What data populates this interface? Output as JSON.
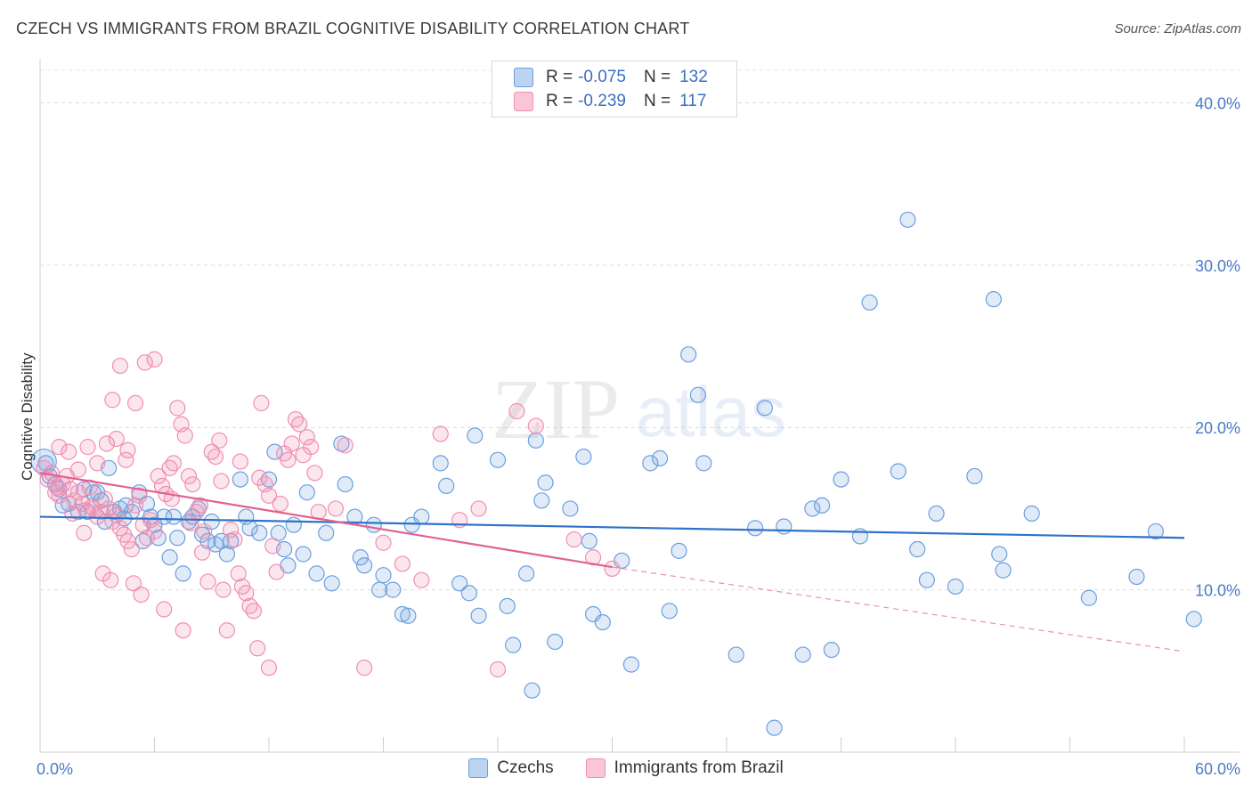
{
  "header": {
    "title": "CZECH VS IMMIGRANTS FROM BRAZIL COGNITIVE DISABILITY CORRELATION CHART",
    "source": "Source: ZipAtlas.com"
  },
  "legend": {
    "czechs": {
      "r_label": "R =",
      "r_value": "-0.075",
      "n_label": "N =",
      "n_value": "132"
    },
    "brazil": {
      "r_label": "R =",
      "r_value": "-0.239",
      "n_label": "N =",
      "n_value": "117"
    }
  },
  "watermark": {
    "zip": "ZIP",
    "atlas": "atlas"
  },
  "colors": {
    "czechs": "#6a9fdf",
    "brazil": "#f08fb0",
    "czechs_line": "#2f72c9",
    "brazil_line": "#e2618f",
    "tick_label": "#4a7cc7"
  },
  "chart_data": {
    "type": "scatter",
    "ylabel": "Cognitive Disability",
    "xlim": [
      0,
      60
    ],
    "ylim": [
      0,
      42
    ],
    "x_tick_labels": [
      {
        "x": 0,
        "label": "0.0%"
      },
      {
        "x": 60,
        "label": "60.0%"
      }
    ],
    "y_tick_labels": [
      {
        "y": 10,
        "label": "10.0%"
      },
      {
        "y": 20,
        "label": "20.0%"
      },
      {
        "y": 30,
        "label": "30.0%"
      },
      {
        "y": 40,
        "label": "40.0%"
      }
    ],
    "x_minor_ticks": [
      6,
      12,
      18,
      24,
      30,
      36,
      42,
      48,
      54,
      60
    ],
    "series": [
      {
        "name": "Czechs",
        "trend": {
          "x0": 0,
          "y0": 14.5,
          "x1": 60,
          "y1": 13.2
        },
        "points": [
          [
            0.3,
            17.8
          ],
          [
            0.5,
            17.0
          ],
          [
            0.8,
            16.5
          ],
          [
            1.0,
            16.2
          ],
          [
            1.2,
            15.2
          ],
          [
            1.5,
            15.3
          ],
          [
            2.0,
            14.8
          ],
          [
            2.3,
            16.2
          ],
          [
            2.5,
            14.8
          ],
          [
            2.8,
            16.0
          ],
          [
            3.0,
            16.0
          ],
          [
            3.2,
            15.5
          ],
          [
            3.4,
            14.2
          ],
          [
            3.6,
            17.5
          ],
          [
            3.9,
            14.8
          ],
          [
            4.2,
            15.0
          ],
          [
            4.4,
            14.4
          ],
          [
            4.5,
            15.2
          ],
          [
            4.8,
            14.8
          ],
          [
            5.2,
            16.0
          ],
          [
            5.4,
            13.0
          ],
          [
            5.6,
            15.3
          ],
          [
            5.8,
            14.5
          ],
          [
            6.0,
            14.0
          ],
          [
            6.2,
            13.2
          ],
          [
            6.5,
            14.5
          ],
          [
            6.8,
            12.0
          ],
          [
            7.0,
            14.5
          ],
          [
            7.2,
            13.2
          ],
          [
            7.5,
            11.0
          ],
          [
            7.8,
            14.2
          ],
          [
            8.0,
            14.5
          ],
          [
            8.3,
            15.0
          ],
          [
            8.5,
            13.4
          ],
          [
            8.8,
            13.0
          ],
          [
            9.0,
            14.2
          ],
          [
            9.2,
            12.8
          ],
          [
            9.5,
            13.0
          ],
          [
            9.8,
            12.2
          ],
          [
            10.0,
            13.0
          ],
          [
            10.5,
            16.8
          ],
          [
            10.8,
            14.5
          ],
          [
            11.0,
            13.8
          ],
          [
            11.5,
            13.5
          ],
          [
            12.0,
            16.8
          ],
          [
            12.3,
            18.5
          ],
          [
            12.5,
            13.5
          ],
          [
            12.8,
            12.5
          ],
          [
            13.0,
            11.5
          ],
          [
            13.3,
            14.0
          ],
          [
            13.8,
            12.2
          ],
          [
            14.0,
            16.0
          ],
          [
            14.5,
            11.0
          ],
          [
            15.0,
            13.5
          ],
          [
            15.3,
            10.4
          ],
          [
            15.8,
            19.0
          ],
          [
            16.0,
            16.5
          ],
          [
            16.5,
            14.5
          ],
          [
            16.8,
            12.0
          ],
          [
            17.0,
            11.5
          ],
          [
            17.5,
            14.0
          ],
          [
            17.8,
            10.0
          ],
          [
            18.0,
            10.9
          ],
          [
            18.5,
            10.0
          ],
          [
            19.0,
            8.5
          ],
          [
            19.3,
            8.4
          ],
          [
            19.5,
            14.0
          ],
          [
            20.0,
            14.5
          ],
          [
            21.0,
            17.8
          ],
          [
            21.3,
            16.4
          ],
          [
            22.0,
            10.4
          ],
          [
            22.5,
            9.8
          ],
          [
            22.8,
            19.5
          ],
          [
            23.0,
            8.4
          ],
          [
            24.0,
            18.0
          ],
          [
            24.5,
            9.0
          ],
          [
            24.8,
            6.6
          ],
          [
            25.5,
            11.0
          ],
          [
            25.8,
            3.8
          ],
          [
            26.0,
            19.2
          ],
          [
            26.3,
            15.5
          ],
          [
            26.5,
            16.6
          ],
          [
            27.0,
            6.8
          ],
          [
            27.8,
            15.0
          ],
          [
            28.5,
            18.2
          ],
          [
            28.8,
            13.0
          ],
          [
            29.0,
            8.5
          ],
          [
            29.5,
            8.0
          ],
          [
            30.5,
            11.8
          ],
          [
            31.0,
            5.4
          ],
          [
            32.0,
            17.8
          ],
          [
            32.5,
            18.1
          ],
          [
            33.0,
            8.7
          ],
          [
            33.5,
            12.4
          ],
          [
            34.0,
            24.5
          ],
          [
            34.5,
            22.0
          ],
          [
            34.8,
            17.8
          ],
          [
            36.5,
            6.0
          ],
          [
            37.5,
            13.8
          ],
          [
            38.0,
            21.2
          ],
          [
            38.5,
            1.5
          ],
          [
            39.0,
            13.9
          ],
          [
            40.0,
            6.0
          ],
          [
            40.5,
            15.0
          ],
          [
            41.0,
            15.2
          ],
          [
            41.5,
            6.3
          ],
          [
            42.0,
            16.8
          ],
          [
            43.0,
            13.3
          ],
          [
            43.5,
            27.7
          ],
          [
            45.0,
            17.3
          ],
          [
            45.5,
            32.8
          ],
          [
            46.0,
            12.5
          ],
          [
            46.5,
            10.6
          ],
          [
            47.0,
            14.7
          ],
          [
            48.0,
            10.2
          ],
          [
            49.0,
            17.0
          ],
          [
            50.0,
            27.9
          ],
          [
            50.3,
            12.2
          ],
          [
            50.5,
            11.2
          ],
          [
            52.0,
            14.7
          ],
          [
            55.0,
            9.5
          ],
          [
            57.5,
            10.8
          ],
          [
            58.5,
            13.6
          ],
          [
            60.5,
            8.2
          ]
        ]
      },
      {
        "name": "Immigrants from Brazil",
        "trend": {
          "x0": 0,
          "y0": 17.2,
          "x1": 30,
          "y1": 11.4,
          "dash_x1": 60,
          "dash_y1": 6.2
        },
        "points": [
          [
            0.2,
            17.5
          ],
          [
            0.4,
            16.8
          ],
          [
            0.6,
            17.2
          ],
          [
            0.8,
            16.0
          ],
          [
            1.0,
            15.8
          ],
          [
            1.2,
            16.5
          ],
          [
            1.4,
            17.0
          ],
          [
            1.6,
            16.2
          ],
          [
            1.8,
            15.5
          ],
          [
            2.0,
            16.0
          ],
          [
            2.2,
            15.3
          ],
          [
            2.4,
            14.9
          ],
          [
            2.6,
            16.3
          ],
          [
            2.8,
            15.0
          ],
          [
            3.0,
            14.5
          ],
          [
            3.2,
            14.8
          ],
          [
            3.4,
            15.6
          ],
          [
            3.6,
            15.0
          ],
          [
            3.8,
            14.2
          ],
          [
            4.0,
            14.6
          ],
          [
            4.2,
            13.8
          ],
          [
            4.4,
            13.4
          ],
          [
            4.6,
            13.0
          ],
          [
            4.8,
            12.5
          ],
          [
            5.0,
            15.2
          ],
          [
            5.2,
            15.8
          ],
          [
            5.4,
            14.0
          ],
          [
            5.6,
            13.2
          ],
          [
            5.8,
            14.3
          ],
          [
            6.0,
            13.6
          ],
          [
            6.2,
            17.0
          ],
          [
            6.4,
            16.4
          ],
          [
            6.6,
            15.9
          ],
          [
            6.8,
            17.5
          ],
          [
            7.0,
            17.8
          ],
          [
            7.2,
            21.2
          ],
          [
            7.4,
            20.2
          ],
          [
            7.6,
            19.5
          ],
          [
            7.8,
            17.0
          ],
          [
            8.0,
            16.5
          ],
          [
            8.2,
            14.8
          ],
          [
            8.4,
            15.2
          ],
          [
            8.6,
            13.6
          ],
          [
            8.8,
            10.5
          ],
          [
            9.0,
            18.5
          ],
          [
            9.2,
            18.2
          ],
          [
            9.4,
            19.2
          ],
          [
            9.6,
            10.0
          ],
          [
            9.8,
            7.5
          ],
          [
            10.0,
            13.7
          ],
          [
            10.2,
            13.1
          ],
          [
            10.4,
            11.0
          ],
          [
            10.6,
            10.2
          ],
          [
            10.8,
            9.8
          ],
          [
            11.0,
            9.0
          ],
          [
            11.2,
            8.7
          ],
          [
            11.4,
            6.4
          ],
          [
            11.6,
            21.5
          ],
          [
            11.8,
            16.5
          ],
          [
            12.0,
            15.8
          ],
          [
            12.2,
            12.7
          ],
          [
            12.4,
            11.1
          ],
          [
            12.6,
            15.3
          ],
          [
            12.8,
            18.4
          ],
          [
            13.0,
            18.0
          ],
          [
            13.2,
            19.0
          ],
          [
            13.4,
            20.5
          ],
          [
            13.6,
            20.2
          ],
          [
            13.8,
            18.3
          ],
          [
            14.0,
            19.4
          ],
          [
            14.2,
            18.8
          ],
          [
            14.4,
            17.2
          ],
          [
            14.6,
            14.8
          ],
          [
            1.5,
            18.5
          ],
          [
            2.5,
            18.8
          ],
          [
            3.0,
            17.8
          ],
          [
            3.5,
            19.0
          ],
          [
            4.0,
            19.3
          ],
          [
            4.5,
            18.0
          ],
          [
            5.0,
            21.5
          ],
          [
            5.5,
            24.0
          ],
          [
            6.0,
            24.2
          ],
          [
            1.0,
            18.8
          ],
          [
            2.0,
            17.4
          ],
          [
            2.3,
            13.5
          ],
          [
            3.3,
            11.0
          ],
          [
            3.7,
            10.6
          ],
          [
            4.9,
            10.4
          ],
          [
            5.3,
            9.7
          ],
          [
            6.5,
            8.8
          ],
          [
            7.5,
            7.5
          ],
          [
            3.8,
            21.7
          ],
          [
            4.2,
            23.8
          ],
          [
            4.6,
            18.6
          ],
          [
            0.9,
            16.3
          ],
          [
            1.7,
            14.7
          ],
          [
            2.7,
            15.1
          ],
          [
            15.5,
            15.0
          ],
          [
            16.0,
            18.9
          ],
          [
            17.0,
            5.2
          ],
          [
            18.0,
            12.9
          ],
          [
            19.0,
            11.6
          ],
          [
            20.0,
            10.6
          ],
          [
            21.0,
            19.6
          ],
          [
            22.0,
            14.3
          ],
          [
            23.0,
            15.0
          ],
          [
            24.0,
            5.1
          ],
          [
            25.0,
            21.0
          ],
          [
            26.0,
            20.1
          ],
          [
            12.0,
            5.2
          ],
          [
            28.0,
            13.1
          ],
          [
            29.0,
            12.0
          ],
          [
            30.0,
            11.3
          ],
          [
            9.5,
            16.7
          ],
          [
            10.5,
            17.9
          ],
          [
            11.5,
            16.9
          ],
          [
            8.5,
            12.3
          ],
          [
            7.9,
            14.1
          ],
          [
            6.9,
            15.6
          ]
        ]
      }
    ]
  },
  "bottom_legend": [
    "Czechs",
    "Immigrants from Brazil"
  ]
}
